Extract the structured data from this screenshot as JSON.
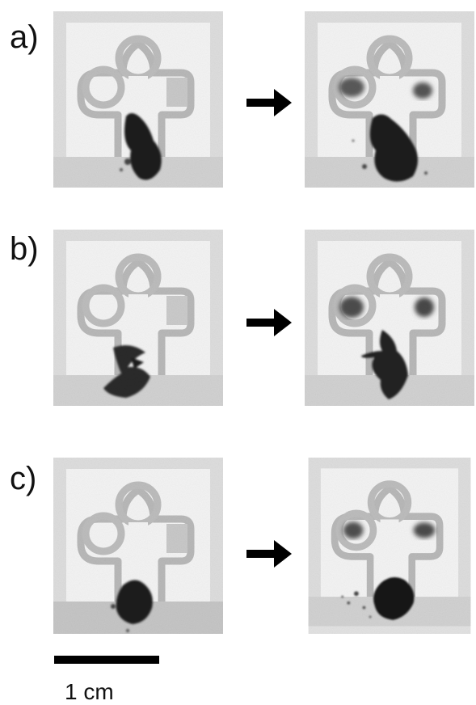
{
  "panels": [
    {
      "label": "a)"
    },
    {
      "label": "b)"
    },
    {
      "label": "c)"
    }
  ],
  "scale_bar": {
    "label": "1 cm"
  }
}
